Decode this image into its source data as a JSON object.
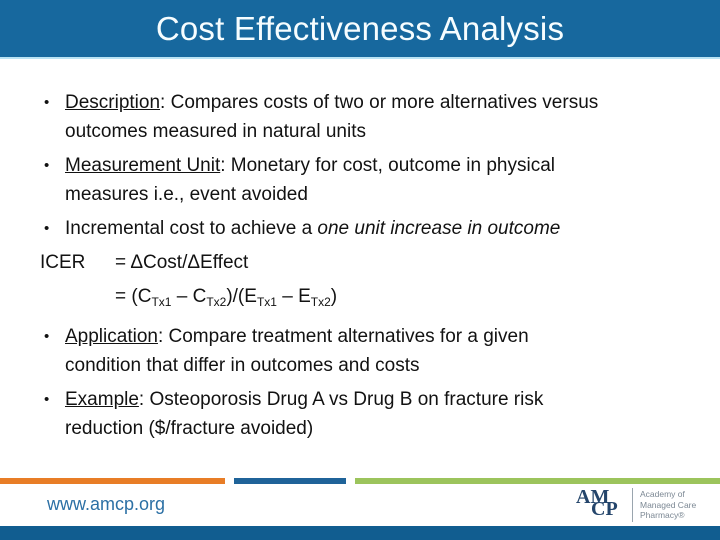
{
  "slide": {
    "title": "Cost Effectiveness Analysis"
  },
  "content": {
    "bullet_char": "•",
    "items": [
      {
        "kind": "bullet",
        "rows": [
          [
            {
              "text": "Description",
              "underline": true
            },
            {
              "text": ": Compares costs of two or more alternatives versus"
            }
          ],
          [
            {
              "text": "outcomes measured in natural units"
            }
          ]
        ]
      },
      {
        "kind": "bullet",
        "rows": [
          [
            {
              "text": "Measurement Unit",
              "underline": true
            },
            {
              "text": ": Monetary for cost, outcome in physical"
            }
          ],
          [
            {
              "text": "measures i.e., event avoided"
            }
          ]
        ]
      },
      {
        "kind": "bullet",
        "rows": [
          [
            {
              "text": "Incremental cost to achieve a "
            },
            {
              "text": "one unit increase in outcome",
              "italic": true
            }
          ]
        ]
      },
      {
        "kind": "icer",
        "label": "ICER",
        "rows": [
          [
            {
              "text": "= ΔCost/ΔEffect"
            }
          ]
        ]
      },
      {
        "kind": "indent",
        "label": "",
        "rows": [
          [
            {
              "text": "= (C"
            },
            {
              "text": "Tx1",
              "sub": true
            },
            {
              "text": " – C"
            },
            {
              "text": "Tx2",
              "sub": true
            },
            {
              "text": ")/(E"
            },
            {
              "text": "Tx1",
              "sub": true
            },
            {
              "text": " – E"
            },
            {
              "text": "Tx2",
              "sub": true
            },
            {
              "text": ")"
            }
          ]
        ]
      },
      {
        "kind": "bullet",
        "rows": [
          [
            {
              "text": "Application",
              "underline": true
            },
            {
              "text": ": Compare treatment alternatives for a given"
            }
          ],
          [
            {
              "text": "condition that differ in outcomes and costs"
            }
          ]
        ]
      },
      {
        "kind": "bullet",
        "rows": [
          [
            {
              "text": "Example",
              "underline": true
            },
            {
              "text": ": Osteoporosis Drug A vs Drug B on fracture risk"
            }
          ],
          [
            {
              "text": "reduction ($/fracture avoided)"
            }
          ]
        ]
      }
    ]
  },
  "footer": {
    "website": "www.amcp.org",
    "logo": {
      "monogram_top": "AM",
      "monogram_bottom": "CP",
      "tagline": [
        "Academy of",
        "Managed Care",
        "Pharmacy®"
      ]
    }
  },
  "theme": {
    "header_blue": "#17689E",
    "header_underline": "#BAE3F4",
    "bar_orange": "#E87D26",
    "bar_blue": "#1F6399",
    "bar_green": "#9CC45C",
    "bottom_bar": "#115D90",
    "link_blue": "#2C70A5",
    "logo_navy": "#24456B"
  }
}
